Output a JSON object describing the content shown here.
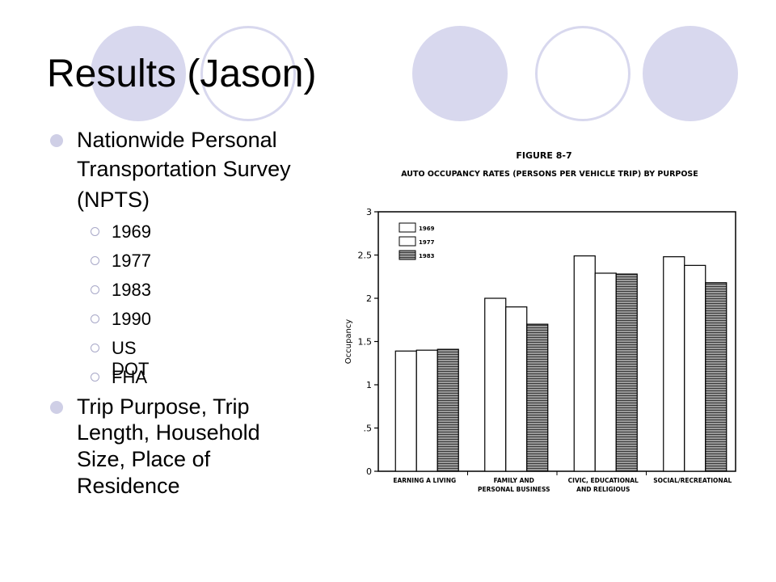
{
  "slide": {
    "title": "Results (Jason)",
    "bullets": [
      {
        "text_lines": [
          "Nationwide Personal",
          "Transportation Survey",
          "(NPTS)"
        ],
        "sub_items": [
          "1969",
          "1977",
          "1983",
          "1990",
          "US DOT",
          "FHA"
        ]
      },
      {
        "text_lines": [
          "Trip Purpose, Trip",
          "Length, Household",
          "Size, Place of",
          "Residence"
        ],
        "sub_items": []
      }
    ],
    "decor_color": "#d8d8ee"
  },
  "chart_data": {
    "type": "bar",
    "title": "FIGURE 8-7",
    "subtitle": "AUTO OCCUPANCY RATES (PERSONS PER VEHICLE TRIP) BY PURPOSE",
    "ylabel": "Occupancy",
    "xlabel": "",
    "ylim": [
      0,
      3
    ],
    "yticks": [
      {
        "value": 0,
        "label": "0"
      },
      {
        "value": 0.5,
        "label": ".5"
      },
      {
        "value": 1,
        "label": "1"
      },
      {
        "value": 1.5,
        "label": "1.5"
      },
      {
        "value": 2,
        "label": "2"
      },
      {
        "value": 2.5,
        "label": "2.5"
      },
      {
        "value": 3,
        "label": "3"
      }
    ],
    "categories": [
      [
        "EARNING A LIVING"
      ],
      [
        "FAMILY AND",
        "PERSONAL BUSINESS"
      ],
      [
        "CIVIC, EDUCATIONAL",
        "AND RELIGIOUS"
      ],
      [
        "SOCIAL/RECREATIONAL"
      ]
    ],
    "series": [
      {
        "name": "1969",
        "values": [
          1.39,
          2.0,
          2.49,
          2.48
        ],
        "fill": "#ffffff"
      },
      {
        "name": "1977",
        "values": [
          1.4,
          1.9,
          2.29,
          2.38
        ],
        "fill": "#ffffff"
      },
      {
        "name": "1983",
        "values": [
          1.41,
          1.7,
          2.28,
          2.18
        ],
        "fill": "#777777"
      }
    ],
    "legend": "top-left",
    "grid": false
  }
}
